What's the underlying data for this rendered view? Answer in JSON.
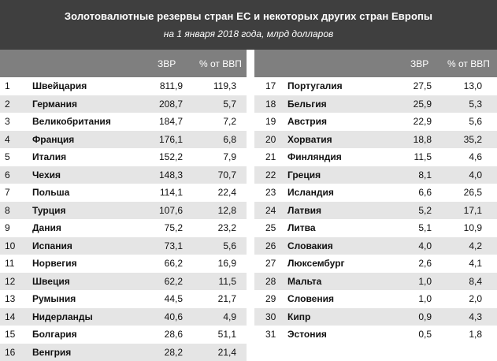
{
  "header": {
    "title": "Золотовалютные резервы стран ЕС и некоторых других стран Европы",
    "subtitle": "на 1 января 2018 года, млрд долларов"
  },
  "columns": {
    "zvr": "ЗВР",
    "gdp": "% от ВВП"
  },
  "left_rows": [
    {
      "n": "1",
      "country": "Швейцария",
      "zvr": "811,9",
      "gdp": "119,3"
    },
    {
      "n": "2",
      "country": "Германия",
      "zvr": "208,7",
      "gdp": "5,7"
    },
    {
      "n": "3",
      "country": "Великобритания",
      "zvr": "184,7",
      "gdp": "7,2"
    },
    {
      "n": "4",
      "country": "Франция",
      "zvr": "176,1",
      "gdp": "6,8"
    },
    {
      "n": "5",
      "country": "Италия",
      "zvr": "152,2",
      "gdp": "7,9"
    },
    {
      "n": "6",
      "country": "Чехия",
      "zvr": "148,3",
      "gdp": "70,7"
    },
    {
      "n": "7",
      "country": "Польша",
      "zvr": "114,1",
      "gdp": "22,4"
    },
    {
      "n": "8",
      "country": "Турция",
      "zvr": "107,6",
      "gdp": "12,8"
    },
    {
      "n": "9",
      "country": "Дания",
      "zvr": "75,2",
      "gdp": "23,2"
    },
    {
      "n": "10",
      "country": "Испания",
      "zvr": "73,1",
      "gdp": "5,6"
    },
    {
      "n": "11",
      "country": "Норвегия",
      "zvr": "66,2",
      "gdp": "16,9"
    },
    {
      "n": "12",
      "country": "Швеция",
      "zvr": "62,2",
      "gdp": "11,5"
    },
    {
      "n": "13",
      "country": "Румыния",
      "zvr": "44,5",
      "gdp": "21,7"
    },
    {
      "n": "14",
      "country": "Нидерланды",
      "zvr": "40,6",
      "gdp": "4,9"
    },
    {
      "n": "15",
      "country": "Болгария",
      "zvr": "28,6",
      "gdp": "51,1"
    },
    {
      "n": "16",
      "country": "Венгрия",
      "zvr": "28,2",
      "gdp": "21,4"
    }
  ],
  "right_rows": [
    {
      "n": "17",
      "country": "Португалия",
      "zvr": "27,5",
      "gdp": "13,0"
    },
    {
      "n": "18",
      "country": "Бельгия",
      "zvr": "25,9",
      "gdp": "5,3"
    },
    {
      "n": "19",
      "country": "Австрия",
      "zvr": "22,9",
      "gdp": "5,6"
    },
    {
      "n": "20",
      "country": "Хорватия",
      "zvr": "18,8",
      "gdp": "35,2"
    },
    {
      "n": "21",
      "country": "Финляндия",
      "zvr": "11,5",
      "gdp": "4,6"
    },
    {
      "n": "22",
      "country": "Греция",
      "zvr": "8,1",
      "gdp": "4,0"
    },
    {
      "n": "23",
      "country": "Исландия",
      "zvr": "6,6",
      "gdp": "26,5"
    },
    {
      "n": "24",
      "country": "Латвия",
      "zvr": "5,2",
      "gdp": "17,1"
    },
    {
      "n": "25",
      "country": "Литва",
      "zvr": "5,1",
      "gdp": "10,9"
    },
    {
      "n": "26",
      "country": "Словакия",
      "zvr": "4,0",
      "gdp": "4,2"
    },
    {
      "n": "27",
      "country": "Люксембург",
      "zvr": "2,6",
      "gdp": "4,1"
    },
    {
      "n": "28",
      "country": "Мальта",
      "zvr": "1,0",
      "gdp": "8,4"
    },
    {
      "n": "29",
      "country": "Словения",
      "zvr": "1,0",
      "gdp": "2,0"
    },
    {
      "n": "30",
      "country": "Кипр",
      "zvr": "0,9",
      "gdp": "4,3"
    },
    {
      "n": "31",
      "country": "Эстония",
      "zvr": "0,5",
      "gdp": "1,8"
    }
  ]
}
